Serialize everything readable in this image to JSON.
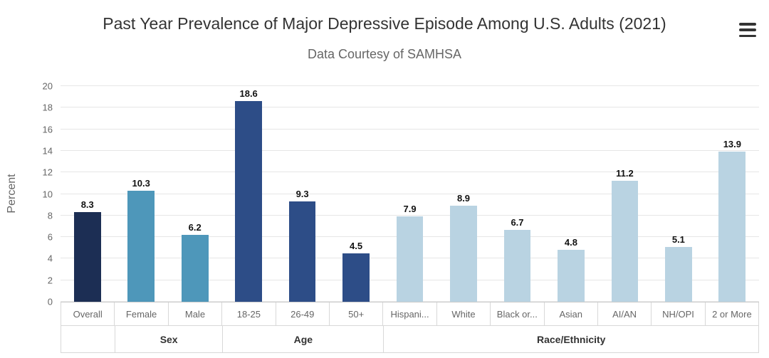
{
  "icons": {
    "export_menu": "hamburger-menu"
  },
  "chart_data": {
    "type": "bar",
    "title": "Past Year Prevalence of Major Depressive Episode Among U.S. Adults (2021)",
    "subtitle": "Data Courtesy of SAMHSA",
    "xlabel": "",
    "ylabel": "Percent",
    "ylim": [
      0,
      20
    ],
    "ytick_step": 2,
    "grid": true,
    "legend": false,
    "categories": [
      "Overall",
      "Female",
      "Male",
      "18-25",
      "26-49",
      "50+",
      "Hispani...",
      "White",
      "Black or...",
      "Asian",
      "AI/AN",
      "NH/OPI",
      "2 or More"
    ],
    "values": [
      8.3,
      10.3,
      6.2,
      18.6,
      9.3,
      4.5,
      7.9,
      8.9,
      6.7,
      4.8,
      11.2,
      5.1,
      13.9
    ],
    "value_labels": [
      "8.3",
      "10.3",
      "6.2",
      "18.6",
      "9.3",
      "4.5",
      "7.9",
      "8.9",
      "6.7",
      "4.8",
      "11.2",
      "5.1",
      "13.9"
    ],
    "bar_colors": [
      "#1c2e54",
      "#4e97ba",
      "#4e97ba",
      "#2d4d87",
      "#2d4d87",
      "#2d4d87",
      "#b9d3e2",
      "#b9d3e2",
      "#b9d3e2",
      "#b9d3e2",
      "#b9d3e2",
      "#b9d3e2",
      "#b9d3e2"
    ],
    "groups": [
      {
        "label": "",
        "span": 1
      },
      {
        "label": "Sex",
        "span": 2
      },
      {
        "label": "Age",
        "span": 3
      },
      {
        "label": "Race/Ethnicity",
        "span": 7
      }
    ],
    "colors": {
      "gridline": "#e6e6e6",
      "axis_band_border": "#d8d8d8",
      "title_text": "#333333",
      "subtitle_text": "#666666",
      "axis_text": "#666666",
      "value_label_text": "#111111"
    }
  }
}
